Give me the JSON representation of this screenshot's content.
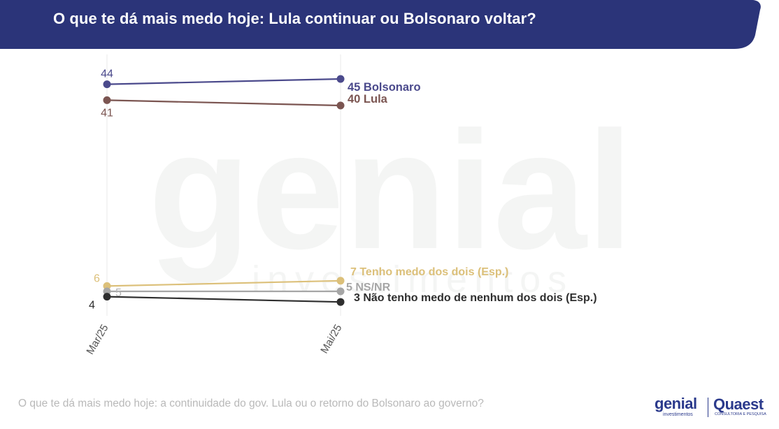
{
  "title": "O que te dá mais medo hoje: Lula continuar ou Bolsonaro voltar?",
  "footer": "O que te dá mais medo hoje: a continuidade do gov. Lula ou o retorno do Bolsonaro ao governo?",
  "watermark": {
    "text": "genial",
    "sub": "investimentos"
  },
  "logos": {
    "genial": "genial",
    "genial_sub": "investimentos",
    "quaest": "Quaest",
    "quaest_sub": "CONSULTORIA E PESQUISA"
  },
  "colors": {
    "header": "#2b3479",
    "bolsonaro": "#4b4a8c",
    "lula": "#7b5551",
    "ambos": "#dcc07a",
    "nsnr": "#a6a6a6",
    "nenhum": "#2e2e2e"
  },
  "chart_data": {
    "type": "line",
    "x": [
      "Mar/25",
      "Mai/25"
    ],
    "ylim": [
      0,
      50
    ],
    "grid": "vertical",
    "series": [
      {
        "key": "bolsonaro",
        "name": "Bolsonaro",
        "values": [
          44,
          45
        ],
        "start_label": "44",
        "end_label": "45 Bolsonaro"
      },
      {
        "key": "lula",
        "name": "Lula",
        "values": [
          41,
          40
        ],
        "start_label": "41",
        "end_label": "40 Lula"
      },
      {
        "key": "ambos",
        "name": "Tenho medo dos dois (Esp.)",
        "values": [
          6,
          7
        ],
        "start_label": "6",
        "end_label": "7 Tenho medo dos dois (Esp.)"
      },
      {
        "key": "nsnr",
        "name": "NS/NR",
        "values": [
          5,
          5
        ],
        "start_label": "5",
        "end_label": "5 NS/NR"
      },
      {
        "key": "nenhum",
        "name": "Não tenho medo de nenhum dos dois (Esp.)",
        "values": [
          4,
          3
        ],
        "start_label": "4",
        "end_label": "3 Não tenho medo de nenhum dos dois (Esp.)"
      }
    ]
  }
}
